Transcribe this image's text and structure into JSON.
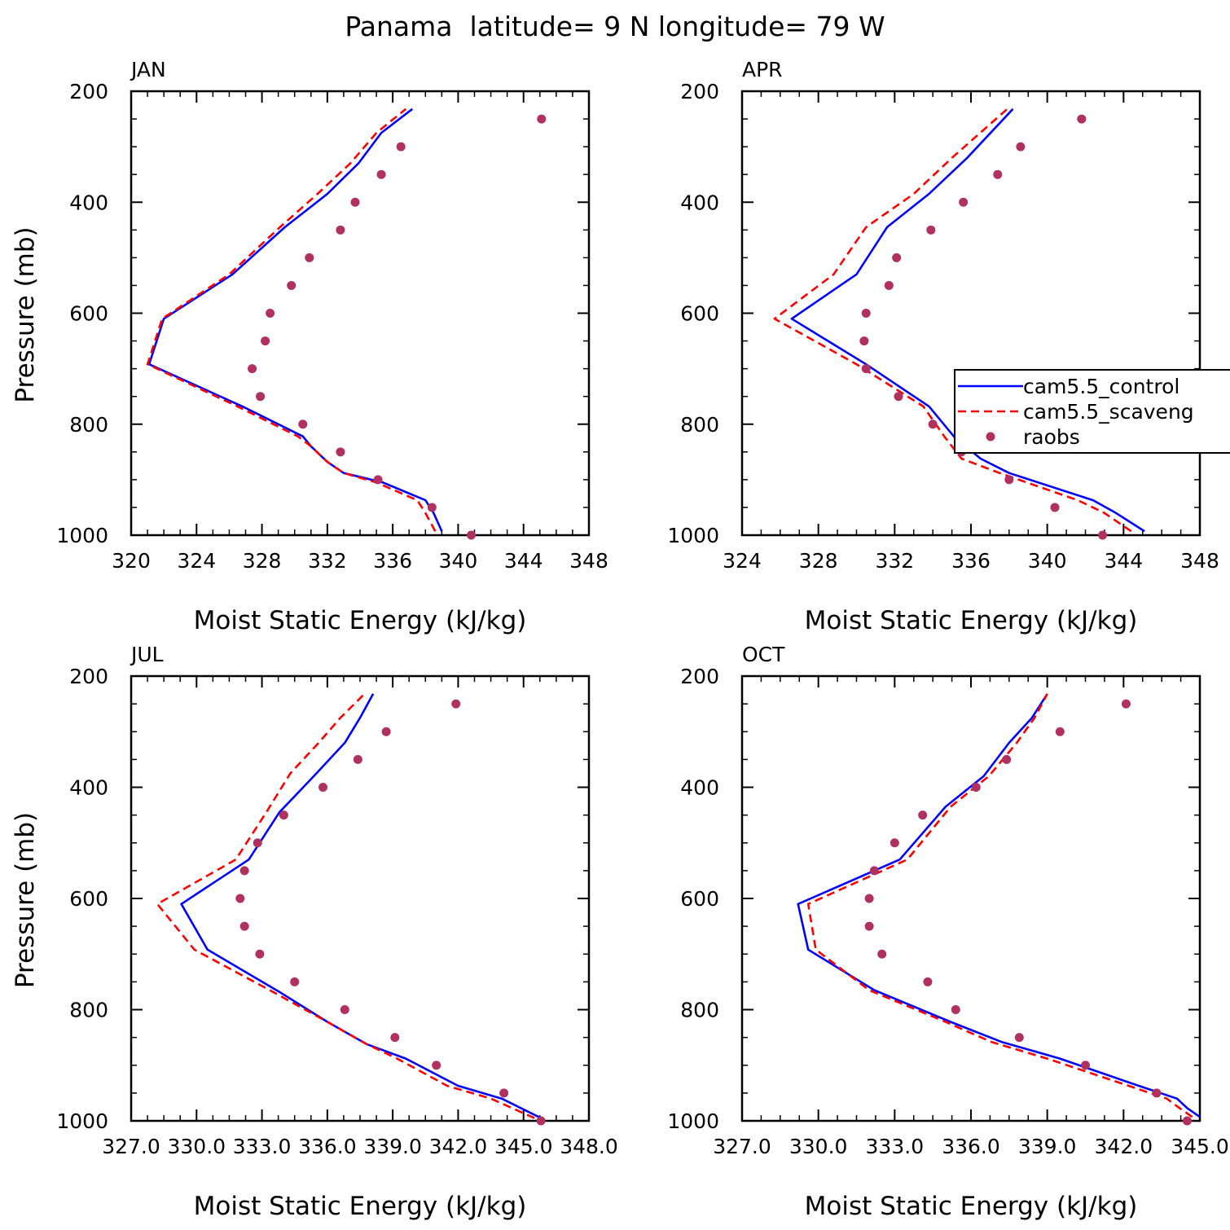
{
  "figure_title": "Panama  latitude= 9 N longitude= 79 W",
  "legend": {
    "entries": [
      {
        "label": "cam5.5_control",
        "color": "#0000ff",
        "style": "solid"
      },
      {
        "label": "cam5.5_scaveng",
        "color": "#ff0000",
        "style": "dashed"
      },
      {
        "label": "raobs",
        "color": "#b03060",
        "style": "dot"
      }
    ]
  },
  "chart_data": [
    {
      "type": "line",
      "title": "JAN",
      "xlabel": "Moist Static Energy (kJ/kg)",
      "ylabel": "Pressure (mb)",
      "xlim": [
        320,
        348
      ],
      "xticks": [
        320,
        324,
        328,
        332,
        336,
        340,
        344,
        348
      ],
      "xtick_labels": [
        "320",
        "324",
        "328",
        "332",
        "336",
        "340",
        "344",
        "348"
      ],
      "ylim": [
        1000,
        200
      ],
      "yticks": [
        200,
        400,
        600,
        800,
        1000
      ],
      "ytick_labels": [
        "200",
        "400",
        "600",
        "800",
        "1000"
      ],
      "show_ylabel": true,
      "series": [
        {
          "name": "cam5.5_control",
          "points": [
            [
              339.0,
              993
            ],
            [
              338.5,
              960
            ],
            [
              338.0,
              937
            ],
            [
              335.4,
              905
            ],
            [
              333.0,
              888
            ],
            [
              332.0,
              868
            ],
            [
              331.0,
              840
            ],
            [
              330.5,
              822
            ],
            [
              326.8,
              768
            ],
            [
              321.1,
              692
            ],
            [
              322.0,
              610
            ],
            [
              326.2,
              530
            ],
            [
              329.4,
              445
            ],
            [
              332.0,
              385
            ],
            [
              333.9,
              330
            ],
            [
              335.3,
              275
            ],
            [
              337.2,
              232
            ]
          ]
        },
        {
          "name": "cam5.5_scaveng",
          "points": [
            [
              338.6,
              993
            ],
            [
              338.0,
              960
            ],
            [
              337.5,
              937
            ],
            [
              335.0,
              905
            ],
            [
              333.0,
              888
            ],
            [
              332.0,
              868
            ],
            [
              331.0,
              840
            ],
            [
              330.2,
              822
            ],
            [
              326.5,
              768
            ],
            [
              321.0,
              692
            ],
            [
              321.9,
              610
            ],
            [
              326.0,
              530
            ],
            [
              329.1,
              445
            ],
            [
              331.4,
              385
            ],
            [
              333.4,
              330
            ],
            [
              335.0,
              275
            ],
            [
              336.8,
              232
            ]
          ]
        },
        {
          "name": "raobs",
          "points": [
            [
              345.1,
              250
            ],
            [
              336.5,
              300
            ],
            [
              335.3,
              350
            ],
            [
              333.7,
              400
            ],
            [
              332.8,
              450
            ],
            [
              330.9,
              500
            ],
            [
              329.8,
              550
            ],
            [
              328.5,
              600
            ],
            [
              328.2,
              650
            ],
            [
              327.4,
              700
            ],
            [
              327.9,
              750
            ],
            [
              330.5,
              800
            ],
            [
              332.8,
              850
            ],
            [
              335.1,
              900
            ],
            [
              338.4,
              950
            ],
            [
              340.8,
              1000
            ]
          ]
        }
      ]
    },
    {
      "type": "line",
      "title": "APR",
      "xlabel": "Moist Static Energy (kJ/kg)",
      "ylabel": "",
      "xlim": [
        324,
        348
      ],
      "xticks": [
        324,
        328,
        332,
        336,
        340,
        344,
        348
      ],
      "xtick_labels": [
        "324",
        "328",
        "332",
        "336",
        "340",
        "344",
        "348"
      ],
      "ylim": [
        1000,
        200
      ],
      "yticks": [
        200,
        400,
        600,
        800,
        1000
      ],
      "ytick_labels": [
        "200",
        "400",
        "600",
        "800",
        "1000"
      ],
      "show_ylabel": false,
      "series": [
        {
          "name": "cam5.5_control",
          "points": [
            [
              345.1,
              993
            ],
            [
              343.6,
              960
            ],
            [
              342.4,
              937
            ],
            [
              338.0,
              888
            ],
            [
              336.5,
              862
            ],
            [
              335.1,
              822
            ],
            [
              333.8,
              768
            ],
            [
              330.5,
              692
            ],
            [
              326.6,
              610
            ],
            [
              330.0,
              530
            ],
            [
              331.6,
              445
            ],
            [
              333.8,
              385
            ],
            [
              335.8,
              320
            ],
            [
              338.2,
              232
            ]
          ]
        },
        {
          "name": "cam5.5_scaveng",
          "points": [
            [
              344.4,
              993
            ],
            [
              343.0,
              960
            ],
            [
              341.6,
              937
            ],
            [
              337.5,
              888
            ],
            [
              335.5,
              862
            ],
            [
              334.6,
              822
            ],
            [
              333.5,
              768
            ],
            [
              330.0,
              692
            ],
            [
              325.7,
              610
            ],
            [
              328.8,
              530
            ],
            [
              330.5,
              445
            ],
            [
              333.0,
              385
            ],
            [
              335.0,
              320
            ],
            [
              337.9,
              232
            ]
          ]
        },
        {
          "name": "raobs",
          "points": [
            [
              341.8,
              250
            ],
            [
              338.6,
              300
            ],
            [
              337.4,
              350
            ],
            [
              335.6,
              400
            ],
            [
              333.9,
              450
            ],
            [
              332.1,
              500
            ],
            [
              331.7,
              550
            ],
            [
              330.5,
              600
            ],
            [
              330.4,
              650
            ],
            [
              330.5,
              700
            ],
            [
              332.2,
              750
            ],
            [
              334.0,
              800
            ],
            [
              335.5,
              850
            ],
            [
              338.0,
              900
            ],
            [
              340.4,
              950
            ],
            [
              342.9,
              1000
            ]
          ]
        }
      ],
      "legend": true
    },
    {
      "type": "line",
      "title": "JUL",
      "xlabel": "Moist Static Energy (kJ/kg)",
      "ylabel": "Pressure (mb)",
      "xlim": [
        327,
        348
      ],
      "xticks": [
        327,
        330,
        333,
        336,
        339,
        342,
        345,
        348
      ],
      "xtick_labels": [
        "327.0",
        "330.0",
        "333.0",
        "336.0",
        "339.0",
        "342.0",
        "345.0",
        "348.0"
      ],
      "ylim": [
        1000,
        200
      ],
      "yticks": [
        200,
        400,
        600,
        800,
        1000
      ],
      "ytick_labels": [
        "200",
        "400",
        "600",
        "800",
        "1000"
      ],
      "show_ylabel": true,
      "series": [
        {
          "name": "cam5.5_control",
          "points": [
            [
              345.8,
              995
            ],
            [
              344.0,
              960
            ],
            [
              342.0,
              937
            ],
            [
              339.6,
              888
            ],
            [
              337.8,
              862
            ],
            [
              336.0,
              822
            ],
            [
              333.8,
              768
            ],
            [
              330.5,
              692
            ],
            [
              329.3,
              610
            ],
            [
              332.4,
              530
            ],
            [
              333.8,
              445
            ],
            [
              335.5,
              375
            ],
            [
              336.8,
              320
            ],
            [
              337.5,
              275
            ],
            [
              338.1,
              232
            ]
          ]
        },
        {
          "name": "cam5.5_scaveng",
          "points": [
            [
              345.5,
              995
            ],
            [
              343.5,
              960
            ],
            [
              341.5,
              937
            ],
            [
              339.2,
              888
            ],
            [
              337.8,
              862
            ],
            [
              336.0,
              822
            ],
            [
              333.5,
              768
            ],
            [
              329.9,
              692
            ],
            [
              328.2,
              610
            ],
            [
              331.8,
              530
            ],
            [
              333.2,
              445
            ],
            [
              334.3,
              375
            ],
            [
              335.6,
              320
            ],
            [
              336.6,
              275
            ],
            [
              337.7,
              232
            ]
          ]
        },
        {
          "name": "raobs",
          "points": [
            [
              341.9,
              250
            ],
            [
              338.7,
              300
            ],
            [
              337.4,
              350
            ],
            [
              335.8,
              400
            ],
            [
              334.0,
              450
            ],
            [
              332.8,
              500
            ],
            [
              332.2,
              550
            ],
            [
              332.0,
              600
            ],
            [
              332.2,
              650
            ],
            [
              332.9,
              700
            ],
            [
              334.5,
              750
            ],
            [
              336.8,
              800
            ],
            [
              339.1,
              850
            ],
            [
              341.0,
              900
            ],
            [
              344.1,
              950
            ],
            [
              345.8,
              1000
            ]
          ]
        }
      ]
    },
    {
      "type": "line",
      "title": "OCT",
      "xlabel": "Moist Static Energy (kJ/kg)",
      "ylabel": "",
      "xlim": [
        327,
        345
      ],
      "xticks": [
        327,
        330,
        333,
        336,
        339,
        342,
        345
      ],
      "xtick_labels": [
        "327.0",
        "330.0",
        "333.0",
        "336.0",
        "339.0",
        "342.0",
        "345.0"
      ],
      "ylim": [
        1000,
        200
      ],
      "yticks": [
        200,
        400,
        600,
        800,
        1000
      ],
      "ytick_labels": [
        "200",
        "400",
        "600",
        "800",
        "1000"
      ],
      "show_ylabel": false,
      "series": [
        {
          "name": "cam5.5_control",
          "points": [
            [
              345.0,
              993
            ],
            [
              344.5,
              977
            ],
            [
              344.1,
              960
            ],
            [
              342.6,
              937
            ],
            [
              339.5,
              888
            ],
            [
              337.2,
              858
            ],
            [
              335.2,
              822
            ],
            [
              332.2,
              765
            ],
            [
              329.6,
              692
            ],
            [
              329.2,
              610
            ],
            [
              333.2,
              530
            ],
            [
              335.0,
              435
            ],
            [
              336.5,
              380
            ],
            [
              337.5,
              320
            ],
            [
              338.4,
              275
            ],
            [
              339.0,
              232
            ]
          ]
        },
        {
          "name": "cam5.5_scaveng",
          "points": [
            [
              344.7,
              993
            ],
            [
              344.2,
              977
            ],
            [
              343.7,
              960
            ],
            [
              342.2,
              937
            ],
            [
              339.0,
              888
            ],
            [
              336.8,
              858
            ],
            [
              335.0,
              822
            ],
            [
              332.0,
              765
            ],
            [
              329.9,
              692
            ],
            [
              329.6,
              610
            ],
            [
              333.5,
              530
            ],
            [
              335.2,
              435
            ],
            [
              336.7,
              380
            ],
            [
              337.8,
              320
            ],
            [
              338.5,
              275
            ],
            [
              339.0,
              232
            ]
          ]
        },
        {
          "name": "raobs",
          "points": [
            [
              342.1,
              250
            ],
            [
              339.5,
              300
            ],
            [
              337.4,
              350
            ],
            [
              336.2,
              400
            ],
            [
              334.1,
              450
            ],
            [
              333.0,
              500
            ],
            [
              332.2,
              550
            ],
            [
              332.0,
              600
            ],
            [
              332.0,
              650
            ],
            [
              332.5,
              700
            ],
            [
              334.3,
              750
            ],
            [
              335.4,
              800
            ],
            [
              337.9,
              850
            ],
            [
              340.5,
              900
            ],
            [
              343.3,
              950
            ],
            [
              344.5,
              1000
            ]
          ]
        }
      ]
    }
  ]
}
